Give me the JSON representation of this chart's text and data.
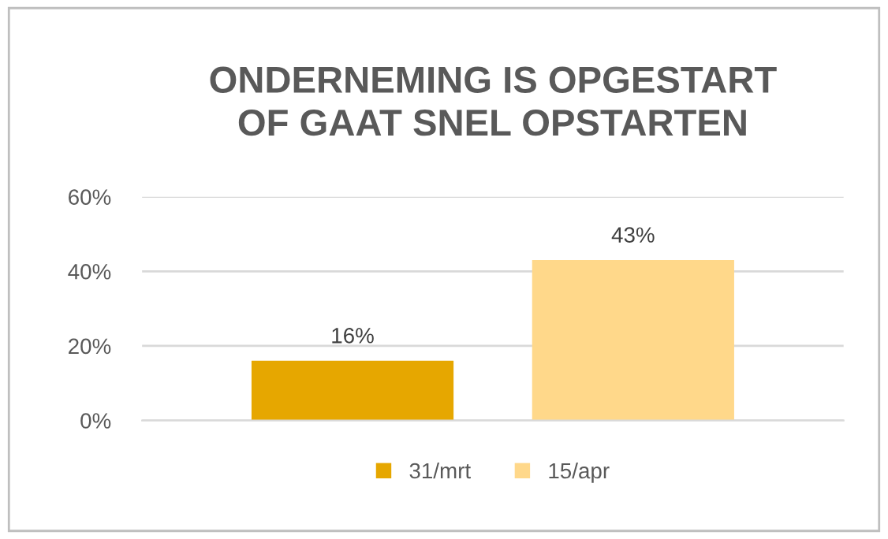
{
  "chart_data": {
    "type": "bar",
    "title": "ONDERNEMING IS OPGESTART\nOF GAAT SNEL OPSTARTEN",
    "categories": [
      null
    ],
    "series": [
      {
        "name": "31/mrt",
        "color": "#e6a700",
        "values": [
          16
        ],
        "value_labels": [
          "16%"
        ]
      },
      {
        "name": "15/apr",
        "color": "#ffd88a",
        "values": [
          43
        ],
        "value_labels": [
          "43%"
        ]
      }
    ],
    "ylim": [
      0,
      60
    ],
    "yticks": [
      {
        "value": 0,
        "label": "0%"
      },
      {
        "value": 20,
        "label": "20%"
      },
      {
        "value": 40,
        "label": "40%"
      },
      {
        "value": 60,
        "label": "60%"
      }
    ],
    "grid": "y",
    "legend": "bottom"
  }
}
